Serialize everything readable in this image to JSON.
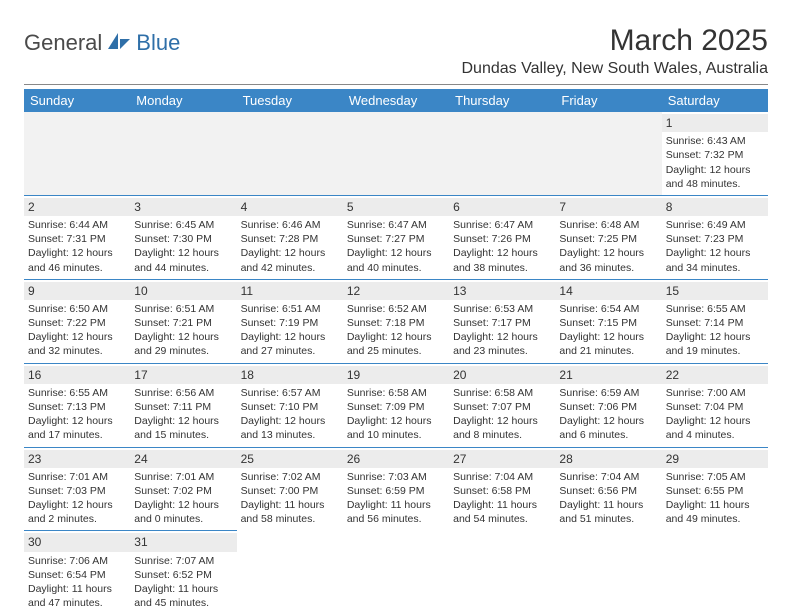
{
  "brand": {
    "part1": "General",
    "part2": "Blue"
  },
  "title": "March 2025",
  "location": "Dundas Valley, New South Wales, Australia",
  "colors": {
    "header_bg": "#3b86c6",
    "header_text": "#ffffff",
    "daynum_bg": "#ececec",
    "blank_bg": "#f2f2f2",
    "row_border": "#3b86c6",
    "logo_blue": "#2f6fa8",
    "logo_gray": "#4a4a4a"
  },
  "typography": {
    "title_fontsize": 30,
    "location_fontsize": 16,
    "weekday_fontsize": 13,
    "cell_fontsize": 10.5,
    "font_family": "Arial"
  },
  "weekdays": [
    "Sunday",
    "Monday",
    "Tuesday",
    "Wednesday",
    "Thursday",
    "Friday",
    "Saturday"
  ],
  "weeks": [
    [
      null,
      null,
      null,
      null,
      null,
      null,
      {
        "n": "1",
        "sr": "Sunrise: 6:43 AM",
        "ss": "Sunset: 7:32 PM",
        "dl": "Daylight: 12 hours and 48 minutes."
      }
    ],
    [
      {
        "n": "2",
        "sr": "Sunrise: 6:44 AM",
        "ss": "Sunset: 7:31 PM",
        "dl": "Daylight: 12 hours and 46 minutes."
      },
      {
        "n": "3",
        "sr": "Sunrise: 6:45 AM",
        "ss": "Sunset: 7:30 PM",
        "dl": "Daylight: 12 hours and 44 minutes."
      },
      {
        "n": "4",
        "sr": "Sunrise: 6:46 AM",
        "ss": "Sunset: 7:28 PM",
        "dl": "Daylight: 12 hours and 42 minutes."
      },
      {
        "n": "5",
        "sr": "Sunrise: 6:47 AM",
        "ss": "Sunset: 7:27 PM",
        "dl": "Daylight: 12 hours and 40 minutes."
      },
      {
        "n": "6",
        "sr": "Sunrise: 6:47 AM",
        "ss": "Sunset: 7:26 PM",
        "dl": "Daylight: 12 hours and 38 minutes."
      },
      {
        "n": "7",
        "sr": "Sunrise: 6:48 AM",
        "ss": "Sunset: 7:25 PM",
        "dl": "Daylight: 12 hours and 36 minutes."
      },
      {
        "n": "8",
        "sr": "Sunrise: 6:49 AM",
        "ss": "Sunset: 7:23 PM",
        "dl": "Daylight: 12 hours and 34 minutes."
      }
    ],
    [
      {
        "n": "9",
        "sr": "Sunrise: 6:50 AM",
        "ss": "Sunset: 7:22 PM",
        "dl": "Daylight: 12 hours and 32 minutes."
      },
      {
        "n": "10",
        "sr": "Sunrise: 6:51 AM",
        "ss": "Sunset: 7:21 PM",
        "dl": "Daylight: 12 hours and 29 minutes."
      },
      {
        "n": "11",
        "sr": "Sunrise: 6:51 AM",
        "ss": "Sunset: 7:19 PM",
        "dl": "Daylight: 12 hours and 27 minutes."
      },
      {
        "n": "12",
        "sr": "Sunrise: 6:52 AM",
        "ss": "Sunset: 7:18 PM",
        "dl": "Daylight: 12 hours and 25 minutes."
      },
      {
        "n": "13",
        "sr": "Sunrise: 6:53 AM",
        "ss": "Sunset: 7:17 PM",
        "dl": "Daylight: 12 hours and 23 minutes."
      },
      {
        "n": "14",
        "sr": "Sunrise: 6:54 AM",
        "ss": "Sunset: 7:15 PM",
        "dl": "Daylight: 12 hours and 21 minutes."
      },
      {
        "n": "15",
        "sr": "Sunrise: 6:55 AM",
        "ss": "Sunset: 7:14 PM",
        "dl": "Daylight: 12 hours and 19 minutes."
      }
    ],
    [
      {
        "n": "16",
        "sr": "Sunrise: 6:55 AM",
        "ss": "Sunset: 7:13 PM",
        "dl": "Daylight: 12 hours and 17 minutes."
      },
      {
        "n": "17",
        "sr": "Sunrise: 6:56 AM",
        "ss": "Sunset: 7:11 PM",
        "dl": "Daylight: 12 hours and 15 minutes."
      },
      {
        "n": "18",
        "sr": "Sunrise: 6:57 AM",
        "ss": "Sunset: 7:10 PM",
        "dl": "Daylight: 12 hours and 13 minutes."
      },
      {
        "n": "19",
        "sr": "Sunrise: 6:58 AM",
        "ss": "Sunset: 7:09 PM",
        "dl": "Daylight: 12 hours and 10 minutes."
      },
      {
        "n": "20",
        "sr": "Sunrise: 6:58 AM",
        "ss": "Sunset: 7:07 PM",
        "dl": "Daylight: 12 hours and 8 minutes."
      },
      {
        "n": "21",
        "sr": "Sunrise: 6:59 AM",
        "ss": "Sunset: 7:06 PM",
        "dl": "Daylight: 12 hours and 6 minutes."
      },
      {
        "n": "22",
        "sr": "Sunrise: 7:00 AM",
        "ss": "Sunset: 7:04 PM",
        "dl": "Daylight: 12 hours and 4 minutes."
      }
    ],
    [
      {
        "n": "23",
        "sr": "Sunrise: 7:01 AM",
        "ss": "Sunset: 7:03 PM",
        "dl": "Daylight: 12 hours and 2 minutes."
      },
      {
        "n": "24",
        "sr": "Sunrise: 7:01 AM",
        "ss": "Sunset: 7:02 PM",
        "dl": "Daylight: 12 hours and 0 minutes."
      },
      {
        "n": "25",
        "sr": "Sunrise: 7:02 AM",
        "ss": "Sunset: 7:00 PM",
        "dl": "Daylight: 11 hours and 58 minutes."
      },
      {
        "n": "26",
        "sr": "Sunrise: 7:03 AM",
        "ss": "Sunset: 6:59 PM",
        "dl": "Daylight: 11 hours and 56 minutes."
      },
      {
        "n": "27",
        "sr": "Sunrise: 7:04 AM",
        "ss": "Sunset: 6:58 PM",
        "dl": "Daylight: 11 hours and 54 minutes."
      },
      {
        "n": "28",
        "sr": "Sunrise: 7:04 AM",
        "ss": "Sunset: 6:56 PM",
        "dl": "Daylight: 11 hours and 51 minutes."
      },
      {
        "n": "29",
        "sr": "Sunrise: 7:05 AM",
        "ss": "Sunset: 6:55 PM",
        "dl": "Daylight: 11 hours and 49 minutes."
      }
    ],
    [
      {
        "n": "30",
        "sr": "Sunrise: 7:06 AM",
        "ss": "Sunset: 6:54 PM",
        "dl": "Daylight: 11 hours and 47 minutes."
      },
      {
        "n": "31",
        "sr": "Sunrise: 7:07 AM",
        "ss": "Sunset: 6:52 PM",
        "dl": "Daylight: 11 hours and 45 minutes."
      },
      null,
      null,
      null,
      null,
      null
    ]
  ]
}
